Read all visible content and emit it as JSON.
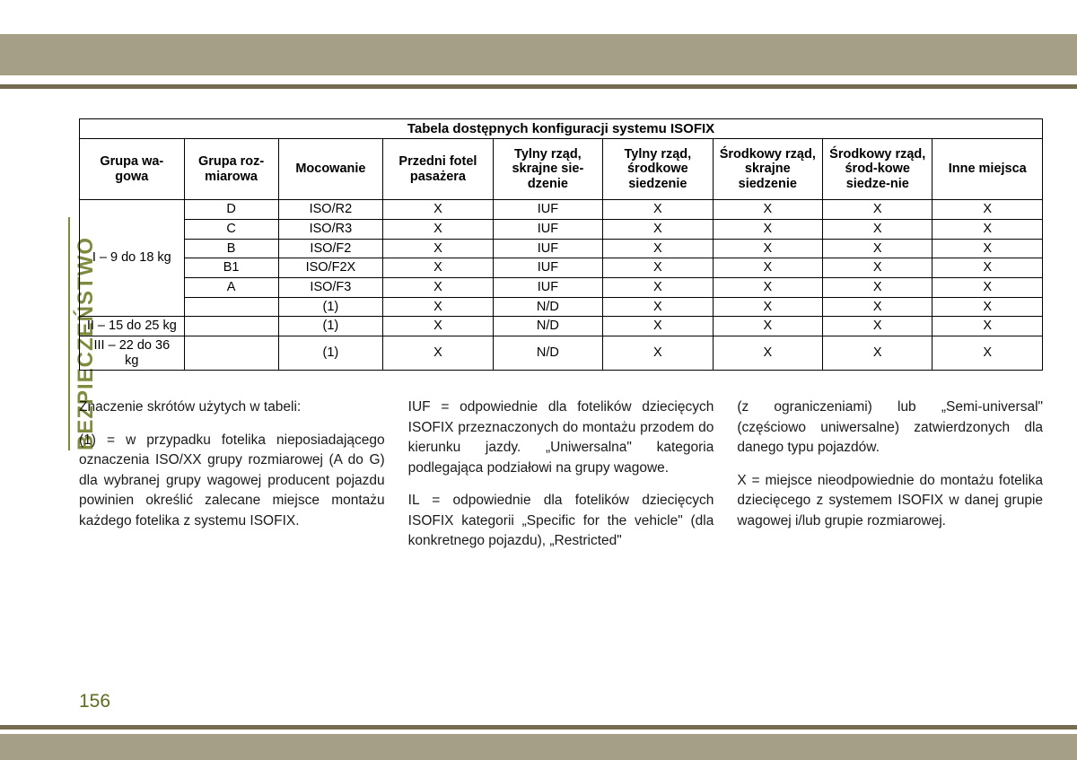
{
  "colors": {
    "band": "#a69f88",
    "thin": "#746b50",
    "accent": "#808a3f",
    "pagenum": "#5d6c1f",
    "text": "#1a1a1a",
    "border": "#000000",
    "background": "#ffffff"
  },
  "sideLabel": "BEZPIECZEŃSTWO",
  "pageNumber": "156",
  "table": {
    "title": "Tabela dostępnych konfiguracji systemu ISOFIX",
    "headers": [
      "Grupa wa-gowa",
      "Grupa roz-miarowa",
      "Mocowanie",
      "Przedni fotel pasażera",
      "Tylny rząd, skrajne sie-dzenie",
      "Tylny rząd, środkowe siedzenie",
      "Środkowy rząd, skrajne siedzenie",
      "Środkowy rząd, środ-kowe siedze-nie",
      "Inne miejsca"
    ],
    "groups": [
      {
        "label": "I – 9 do 18 kg",
        "rows": [
          [
            "D",
            "ISO/R2",
            "X",
            "IUF",
            "X",
            "X",
            "X",
            "X"
          ],
          [
            "C",
            "ISO/R3",
            "X",
            "IUF",
            "X",
            "X",
            "X",
            "X"
          ],
          [
            "B",
            "ISO/F2",
            "X",
            "IUF",
            "X",
            "X",
            "X",
            "X"
          ],
          [
            "B1",
            "ISO/F2X",
            "X",
            "IUF",
            "X",
            "X",
            "X",
            "X"
          ],
          [
            "A",
            "ISO/F3",
            "X",
            "IUF",
            "X",
            "X",
            "X",
            "X"
          ],
          [
            "",
            "(1)",
            "X",
            "N/D",
            "X",
            "X",
            "X",
            "X"
          ]
        ]
      },
      {
        "label": "II – 15 do 25 kg",
        "rows": [
          [
            "",
            "(1)",
            "X",
            "N/D",
            "X",
            "X",
            "X",
            "X"
          ]
        ]
      },
      {
        "label": "III – 22 do 36 kg",
        "rows": [
          [
            "",
            "(1)",
            "X",
            "N/D",
            "X",
            "X",
            "X",
            "X"
          ]
        ]
      }
    ]
  },
  "explain": {
    "col1": {
      "p1": "Znaczenie skrótów użytych w tabeli:",
      "p2": "(1) = w przypadku fotelika nieposiadającego oznaczenia ISO/XX grupy rozmiarowej (A do G) dla wybranej grupy wagowej producent pojazdu powinien określić zalecane miejsce montażu każdego fotelika z systemu ISOFIX."
    },
    "col2": {
      "p1": "IUF = odpowiednie dla fotelików dziecięcych ISOFIX przeznaczonych do montażu przodem do kierunku jazdy. „Uniwersalna\" kategoria podlegająca podziałowi na grupy wagowe.",
      "p2": "IL = odpowiednie dla fotelików dziecięcych ISOFIX kategorii „Specific for the vehicle\" (dla konkretnego pojazdu), „Restricted\""
    },
    "col3": {
      "p1": "(z ograniczeniami) lub „Semi-universal\" (częściowo uniwersalne) zatwierdzonych dla danego typu pojazdów.",
      "p2": "X = miejsce nieodpowiednie do montażu fotelika dziecięcego z systemem ISOFIX w danej grupie wagowej i/lub grupie rozmiarowej."
    }
  }
}
